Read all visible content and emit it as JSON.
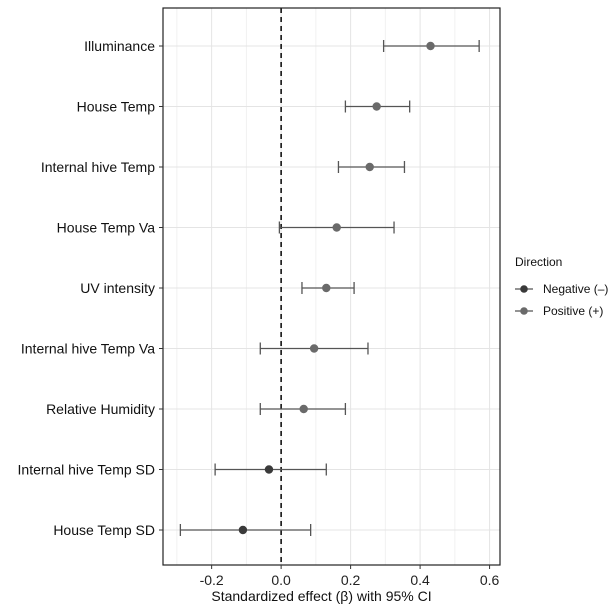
{
  "chart_data": {
    "type": "scatter",
    "title": "",
    "xlabel": "Standardized effect (β) with 95% CI",
    "ylabel": "",
    "xlim": [
      -0.34,
      0.63
    ],
    "x_ticks": [
      -0.2,
      0.0,
      0.2,
      0.4,
      0.6
    ],
    "x_tick_labels": [
      "-0.2",
      "0.0",
      "0.2",
      "0.4",
      "0.6"
    ],
    "reference_line": 0.0,
    "grid": true,
    "legend": {
      "title": "Direction",
      "placement": "right",
      "entries": [
        {
          "label": "Negative (–)",
          "color": "#3a3a3a"
        },
        {
          "label": "Positive (+)",
          "color": "#6a6a6a"
        }
      ]
    },
    "categories": [
      "Illuminance",
      "House Temp",
      "Internal hive Temp",
      "House Temp Va",
      "UV intensity",
      "Internal hive Temp Va",
      "Relative Humidity",
      "Internal hive Temp SD",
      "House Temp SD"
    ],
    "estimates": [
      {
        "label": "Illuminance",
        "beta": 0.43,
        "ci": [
          0.295,
          0.57
        ],
        "direction": "Positive (+)"
      },
      {
        "label": "House Temp",
        "beta": 0.275,
        "ci": [
          0.185,
          0.37
        ],
        "direction": "Positive (+)"
      },
      {
        "label": "Internal hive Temp",
        "beta": 0.255,
        "ci": [
          0.165,
          0.355
        ],
        "direction": "Positive (+)"
      },
      {
        "label": "House Temp Va",
        "beta": 0.16,
        "ci": [
          -0.005,
          0.325
        ],
        "direction": "Positive (+)"
      },
      {
        "label": "UV intensity",
        "beta": 0.13,
        "ci": [
          0.06,
          0.21
        ],
        "direction": "Positive (+)"
      },
      {
        "label": "Internal hive Temp Va",
        "beta": 0.095,
        "ci": [
          -0.06,
          0.25
        ],
        "direction": "Positive (+)"
      },
      {
        "label": "Relative Humidity",
        "beta": 0.065,
        "ci": [
          -0.06,
          0.185
        ],
        "direction": "Positive (+)"
      },
      {
        "label": "Internal hive Temp SD",
        "beta": -0.035,
        "ci": [
          -0.19,
          0.13
        ],
        "direction": "Negative (–)"
      },
      {
        "label": "House Temp SD",
        "beta": -0.11,
        "ci": [
          -0.29,
          0.085
        ],
        "direction": "Negative (–)"
      }
    ]
  }
}
